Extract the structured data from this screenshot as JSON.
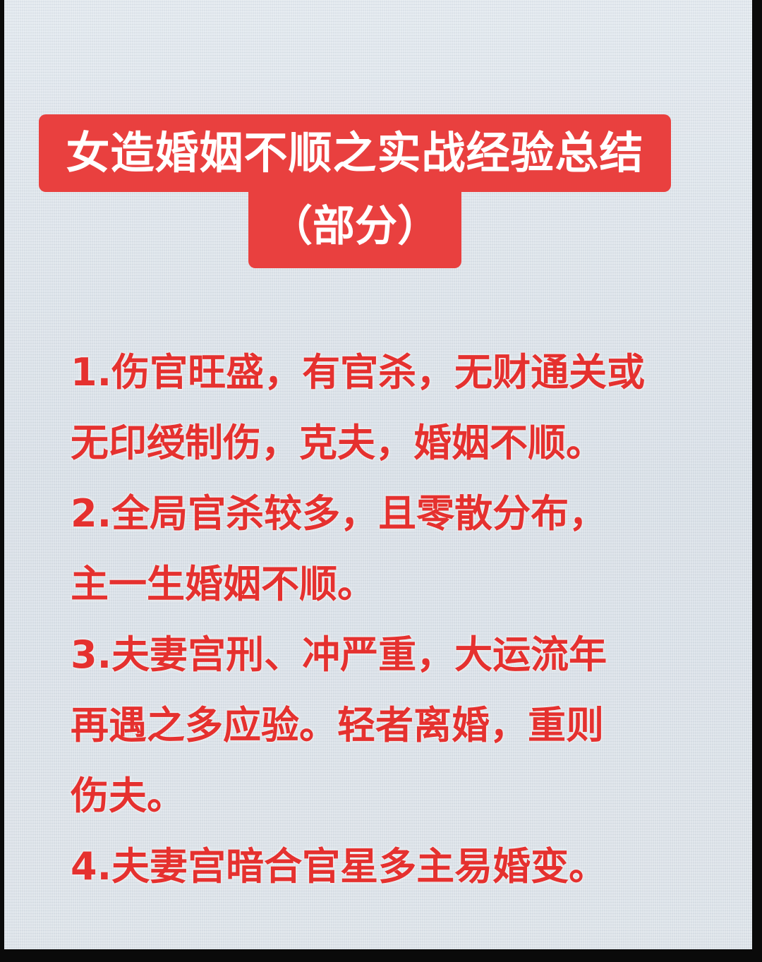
{
  "title": {
    "line1": "女造婚姻不顺之实战经验总结",
    "line2": "（部分）"
  },
  "lines": [
    "1.伤官旺盛，有官杀，无财通关或",
    "无印绶制伤，克夫，婚姻不顺。",
    "2.全局官杀较多，且零散分布，",
    "主一生婚姻不顺。",
    "3.夫妻宫刑、冲严重，大运流年",
    "再遇之多应验。轻者离婚，重则",
    "伤夫。",
    "4.夫妻宫暗合官星多主易婚变。"
  ],
  "colors": {
    "accent_red": "#e9403f",
    "text_red": "#e5312f",
    "background": "#dbe2e8"
  }
}
